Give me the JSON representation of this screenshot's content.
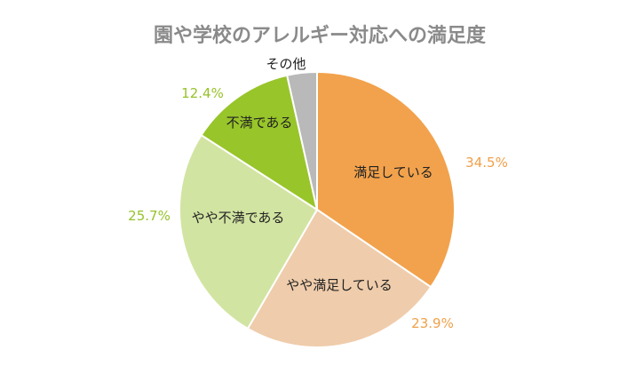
{
  "chart_data": {
    "type": "pie",
    "title": "園や学校のアレルギー対応への満足度",
    "slices": [
      {
        "label": "満足している",
        "value": 34.5,
        "pct_label": "34.5%",
        "color": "#f2a24c",
        "pct_color": "#f0a04a"
      },
      {
        "label": "やや満足している",
        "value": 23.9,
        "pct_label": "23.9%",
        "color": "#efccab",
        "pct_color": "#f0a04a"
      },
      {
        "label": "やや不満である",
        "value": 25.7,
        "pct_label": "25.7%",
        "color": "#d2e4a2",
        "pct_color": "#96c22a"
      },
      {
        "label": "不満である",
        "value": 12.4,
        "pct_label": "12.4%",
        "color": "#98c52a",
        "pct_color": "#96c22a"
      },
      {
        "label": "その他",
        "value": 3.5,
        "pct_label": "",
        "color": "#b9b9b9",
        "pct_color": "#96c22a"
      }
    ],
    "start_angle": "12 o'clock",
    "direction": "clockwise",
    "legend": "none"
  }
}
